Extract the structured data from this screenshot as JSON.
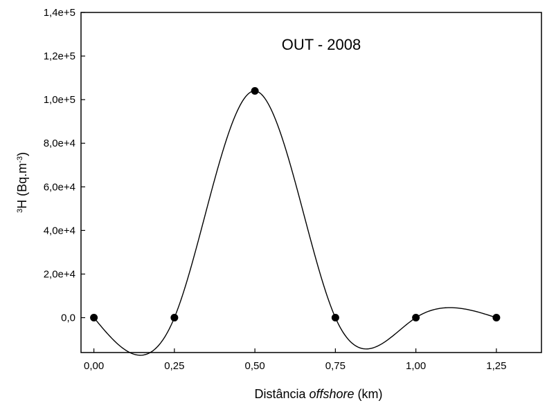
{
  "chart_data": {
    "type": "line",
    "title": "OUT - 2008",
    "xlabel": {
      "prefix": "Distância ",
      "italic": "offshore",
      "suffix": " (km)"
    },
    "ylabel": {
      "sup1": "3",
      "main": "H (Bq.m",
      "sup2": "-3",
      "close": ")"
    },
    "xlim": [
      -0.04,
      1.39
    ],
    "ylim": [
      -16000,
      140000
    ],
    "x_ticks": [
      0,
      0.25,
      0.5,
      0.75,
      1.0,
      1.25
    ],
    "x_tick_labels": [
      "0,00",
      "0,25",
      "0,50",
      "0,75",
      "1,00",
      "1,25"
    ],
    "y_ticks": [
      0,
      20000,
      40000,
      60000,
      80000,
      100000,
      120000,
      140000
    ],
    "y_tick_labels": [
      "0,0",
      "2,0e+4",
      "4,0e+4",
      "6,0e+4",
      "8,0e+4",
      "1,0e+5",
      "1,2e+5",
      "1,4e+5"
    ],
    "series": [
      {
        "x": [
          0,
          0.25,
          0.5,
          0.75,
          1.0,
          1.25
        ],
        "values": [
          0,
          0,
          104000,
          0,
          0,
          0
        ]
      }
    ],
    "curve": "spline",
    "marker": "filled-circle",
    "grid": false
  }
}
